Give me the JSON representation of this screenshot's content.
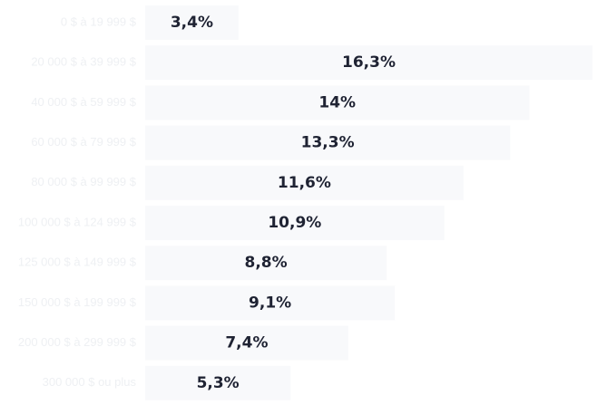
{
  "chart_data": {
    "type": "bar",
    "orientation": "horizontal",
    "categories": [
      "0 $ à 19 999 $",
      "20 000 $ à 39 999 $",
      "40 000 $ à 59 999 $",
      "60 000 $ à 79 999 $",
      "80 000 $ à 99 999 $",
      "100 000 $ à 124 999 $",
      "125 000 $ à 149 999 $",
      "150 000 $ à 199 999 $",
      "200 000 $ à 299 999 $",
      "300 000 $ ou plus"
    ],
    "values": [
      3.4,
      16.3,
      14,
      13.3,
      11.6,
      10.9,
      8.8,
      9.1,
      7.4,
      5.3
    ],
    "value_labels": [
      "3,4%",
      "16,3%",
      "14%",
      "13,3%",
      "11,6%",
      "10,9%",
      "8,8%",
      "9,1%",
      "7,4%",
      "5,3%"
    ],
    "xlim": [
      0,
      16.3
    ],
    "grid": false,
    "colors": {
      "bar": "#f8f9fb",
      "value_text": "#1f2333",
      "category_text": "#eef0f3"
    }
  }
}
